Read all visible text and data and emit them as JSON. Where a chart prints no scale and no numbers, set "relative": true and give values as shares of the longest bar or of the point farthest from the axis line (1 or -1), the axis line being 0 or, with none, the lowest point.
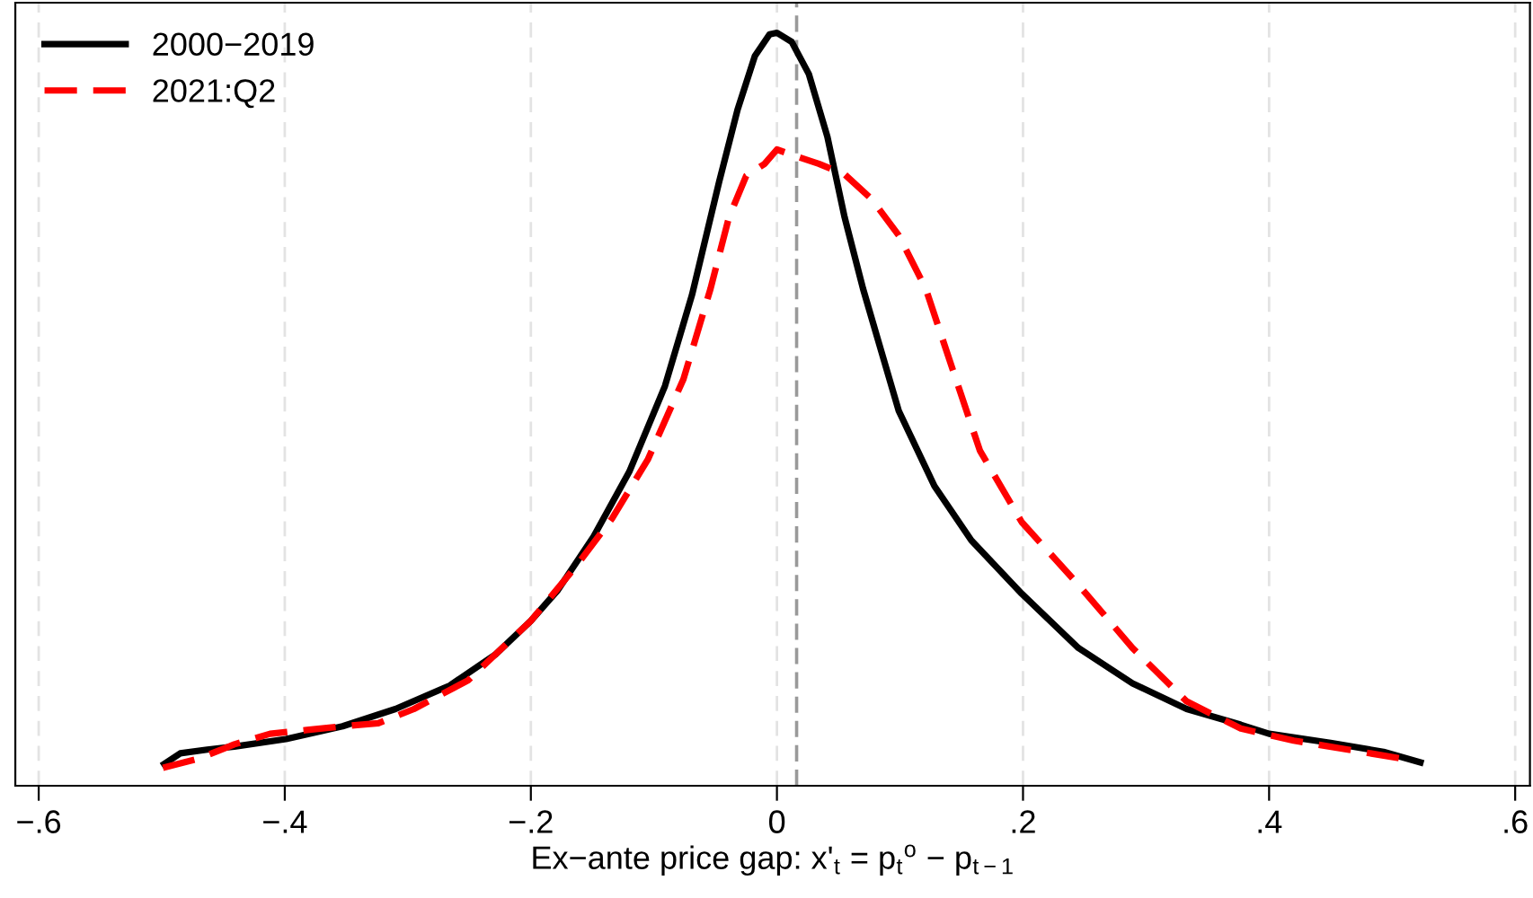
{
  "chart_data": {
    "type": "line",
    "relative": true,
    "xlabel": "Ex−ante price gap: x'$_{t}$ = p$_{t}$$^{o}$ − p$_{t−1}$",
    "xlim": [
      -0.619,
      0.612
    ],
    "xticks": [
      {
        "value": -0.6,
        "label": "−.6"
      },
      {
        "value": -0.4,
        "label": "−.4"
      },
      {
        "value": -0.2,
        "label": "−.2"
      },
      0,
      {
        "value": 0.2,
        "label": ".2"
      },
      {
        "value": 0.4,
        "label": ".4"
      },
      {
        "value": 0.6,
        "label": ".6"
      }
    ],
    "grid": "x",
    "legend": "top left",
    "tick_labels": "x",
    "ref_lines": [
      {
        "axis": "x",
        "value": 0.016,
        "color": "#999999",
        "line_style": "dashed"
      }
    ],
    "series": [
      {
        "name": "2000−2019",
        "color": "#000000",
        "line_style": "solid",
        "x": [
          -0.498,
          -0.485,
          -0.463,
          -0.441,
          -0.399,
          -0.353,
          -0.31,
          -0.266,
          -0.229,
          -0.2,
          -0.178,
          -0.149,
          -0.12,
          -0.091,
          -0.069,
          -0.047,
          -0.032,
          -0.018,
          -0.006,
          0,
          0.012,
          0.026,
          0.041,
          0.055,
          0.07,
          0.085,
          0.099,
          0.128,
          0.158,
          0.199,
          0.245,
          0.289,
          0.333,
          0.377,
          0.4,
          0.45,
          0.493,
          0.523
        ],
        "values": [
          0.029,
          0.043,
          0.048,
          0.052,
          0.062,
          0.079,
          0.102,
          0.133,
          0.174,
          0.219,
          0.26,
          0.331,
          0.417,
          0.531,
          0.652,
          0.802,
          0.898,
          0.969,
          0.998,
          1,
          0.988,
          0.945,
          0.862,
          0.755,
          0.66,
          0.576,
          0.498,
          0.398,
          0.326,
          0.255,
          0.183,
          0.136,
          0.102,
          0.081,
          0.069,
          0.057,
          0.045,
          0.031
        ]
      },
      {
        "name": "2021:Q2",
        "color": "#ff0000",
        "line_style": "dashed",
        "x": [
          -0.499,
          -0.47,
          -0.441,
          -0.412,
          -0.382,
          -0.353,
          -0.324,
          -0.295,
          -0.251,
          -0.2,
          -0.164,
          -0.134,
          -0.105,
          -0.076,
          -0.054,
          -0.039,
          -0.025,
          -0.01,
          0,
          0.012,
          0.034,
          0.055,
          0.077,
          0.099,
          0.121,
          0.143,
          0.165,
          0.199,
          0.245,
          0.289,
          0.333,
          0.377,
          0.42,
          0.464,
          0.508
        ],
        "values": [
          0.024,
          0.036,
          0.055,
          0.069,
          0.074,
          0.079,
          0.083,
          0.102,
          0.14,
          0.219,
          0.29,
          0.355,
          0.433,
          0.54,
          0.66,
          0.755,
          0.81,
          0.826,
          0.845,
          0.838,
          0.826,
          0.812,
          0.779,
          0.731,
          0.66,
          0.552,
          0.445,
          0.35,
          0.267,
          0.183,
          0.112,
          0.076,
          0.06,
          0.048,
          0.036
        ]
      }
    ]
  }
}
